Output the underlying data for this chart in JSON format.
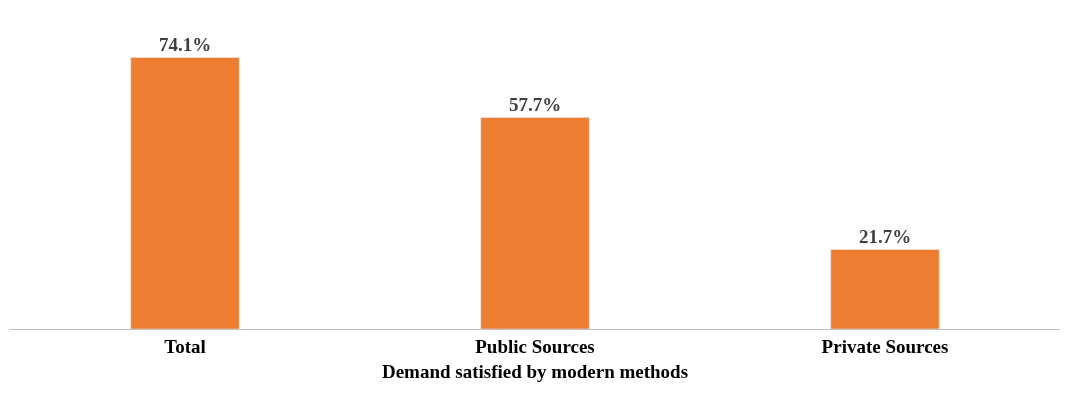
{
  "chart_data": {
    "type": "bar",
    "xlabel": "Demand satisfied by modern methods",
    "categories": [
      "Total",
      "Public Sources",
      "Private Sources"
    ],
    "values": [
      74.1,
      57.7,
      21.7
    ],
    "value_labels": [
      "74.1%",
      "57.7%",
      "21.7%"
    ],
    "color": "#ed7d31"
  }
}
